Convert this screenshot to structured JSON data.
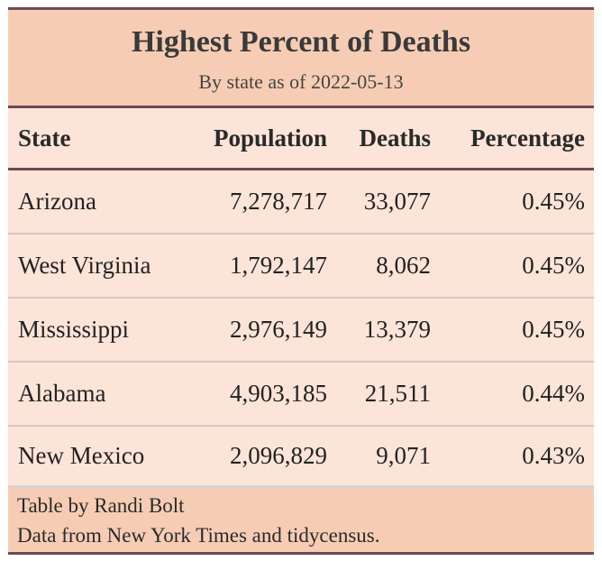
{
  "chart_data": {
    "type": "table",
    "title": "Highest Percent of Deaths",
    "subtitle": "By state as of 2022-05-13",
    "columns": [
      "State",
      "Population",
      "Deaths",
      "Percentage"
    ],
    "rows": [
      [
        "Arizona",
        "7,278,717",
        "33,077",
        "0.45%"
      ],
      [
        "West Virginia",
        "1,792,147",
        "8,062",
        "0.45%"
      ],
      [
        "Mississippi",
        "2,976,149",
        "13,379",
        "0.45%"
      ],
      [
        "Alabama",
        "4,903,185",
        "21,511",
        "0.44%"
      ],
      [
        "New Mexico",
        "2,096,829",
        "9,071",
        "0.43%"
      ]
    ],
    "footnotes": [
      "Table by Randi Bolt",
      "Data from New York Times and tidycensus."
    ]
  },
  "colors": {
    "header_bg": "#f6cdb4",
    "body_bg": "#fde4d8",
    "rule": "#6b4b52",
    "row_divider": "#d7c4c4"
  }
}
